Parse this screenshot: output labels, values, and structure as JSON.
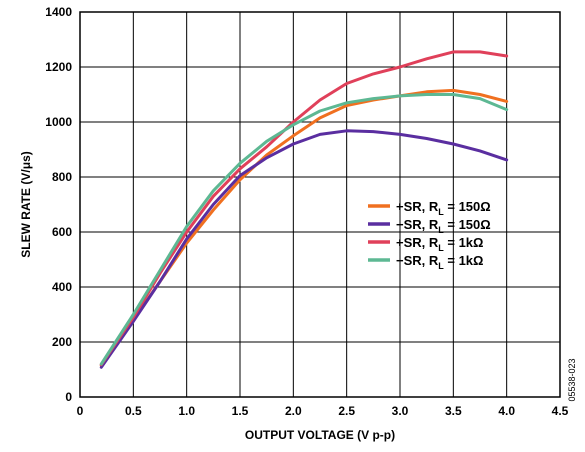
{
  "chart_data": {
    "type": "line",
    "title": "",
    "xlabel": "OUTPUT VOLTAGE (V p-p)",
    "ylabel": "SLEW RATE (V/μs)",
    "xlim": [
      0,
      4.5
    ],
    "ylim": [
      0,
      1400
    ],
    "x_ticks": [
      "0",
      "0.5",
      "1.0",
      "1.5",
      "2.0",
      "2.5",
      "3.0",
      "3.5",
      "4.0",
      "4.5"
    ],
    "y_ticks": [
      "0",
      "200",
      "400",
      "600",
      "800",
      "1000",
      "1200",
      "1400"
    ],
    "grid": true,
    "legend_position": "center-right",
    "series": [
      {
        "name": "+SR, RL = 150Ω",
        "legend": {
          "main": "+SR, R",
          "sub": "L",
          "rest": " = 150Ω"
        },
        "color": "#f07020",
        "points": [
          [
            0.2,
            115
          ],
          [
            0.5,
            280
          ],
          [
            0.75,
            420
          ],
          [
            1.0,
            560
          ],
          [
            1.25,
            680
          ],
          [
            1.5,
            790
          ],
          [
            1.75,
            880
          ],
          [
            2.0,
            950
          ],
          [
            2.25,
            1015
          ],
          [
            2.5,
            1060
          ],
          [
            2.75,
            1080
          ],
          [
            3.0,
            1095
          ],
          [
            3.25,
            1110
          ],
          [
            3.5,
            1115
          ],
          [
            3.75,
            1100
          ],
          [
            4.0,
            1075
          ]
        ]
      },
      {
        "name": "−SR, RL = 150Ω",
        "legend": {
          "main": "−SR, R",
          "sub": "L",
          "rest": " = 150Ω"
        },
        "color": "#5a2ea0",
        "points": [
          [
            0.2,
            108
          ],
          [
            0.5,
            275
          ],
          [
            0.75,
            420
          ],
          [
            1.0,
            575
          ],
          [
            1.25,
            700
          ],
          [
            1.5,
            805
          ],
          [
            1.75,
            870
          ],
          [
            2.0,
            920
          ],
          [
            2.25,
            955
          ],
          [
            2.5,
            968
          ],
          [
            2.75,
            965
          ],
          [
            3.0,
            955
          ],
          [
            3.25,
            940
          ],
          [
            3.5,
            920
          ],
          [
            3.75,
            895
          ],
          [
            4.0,
            862
          ]
        ]
      },
      {
        "name": "+SR, RL = 1kΩ",
        "legend": {
          "main": "+SR, R",
          "sub": "L",
          "rest": " = 1kΩ"
        },
        "color": "#e0405a",
        "points": [
          [
            0.2,
            118
          ],
          [
            0.5,
            290
          ],
          [
            0.75,
            450
          ],
          [
            1.0,
            600
          ],
          [
            1.25,
            730
          ],
          [
            1.5,
            830
          ],
          [
            1.75,
            910
          ],
          [
            2.0,
            1000
          ],
          [
            2.25,
            1080
          ],
          [
            2.5,
            1140
          ],
          [
            2.75,
            1175
          ],
          [
            3.0,
            1200
          ],
          [
            3.25,
            1230
          ],
          [
            3.5,
            1255
          ],
          [
            3.75,
            1255
          ],
          [
            4.0,
            1240
          ]
        ]
      },
      {
        "name": "−SR, RL = 1kΩ",
        "legend": {
          "main": "−SR, R",
          "sub": "L",
          "rest": " = 1kΩ"
        },
        "color": "#5db893",
        "points": [
          [
            0.2,
            120
          ],
          [
            0.5,
            300
          ],
          [
            0.75,
            460
          ],
          [
            1.0,
            620
          ],
          [
            1.25,
            750
          ],
          [
            1.5,
            850
          ],
          [
            1.75,
            930
          ],
          [
            2.0,
            990
          ],
          [
            2.25,
            1040
          ],
          [
            2.5,
            1070
          ],
          [
            2.75,
            1085
          ],
          [
            3.0,
            1095
          ],
          [
            3.25,
            1100
          ],
          [
            3.5,
            1100
          ],
          [
            3.75,
            1085
          ],
          [
            4.0,
            1045
          ]
        ]
      }
    ],
    "side_code": "05538-023"
  }
}
